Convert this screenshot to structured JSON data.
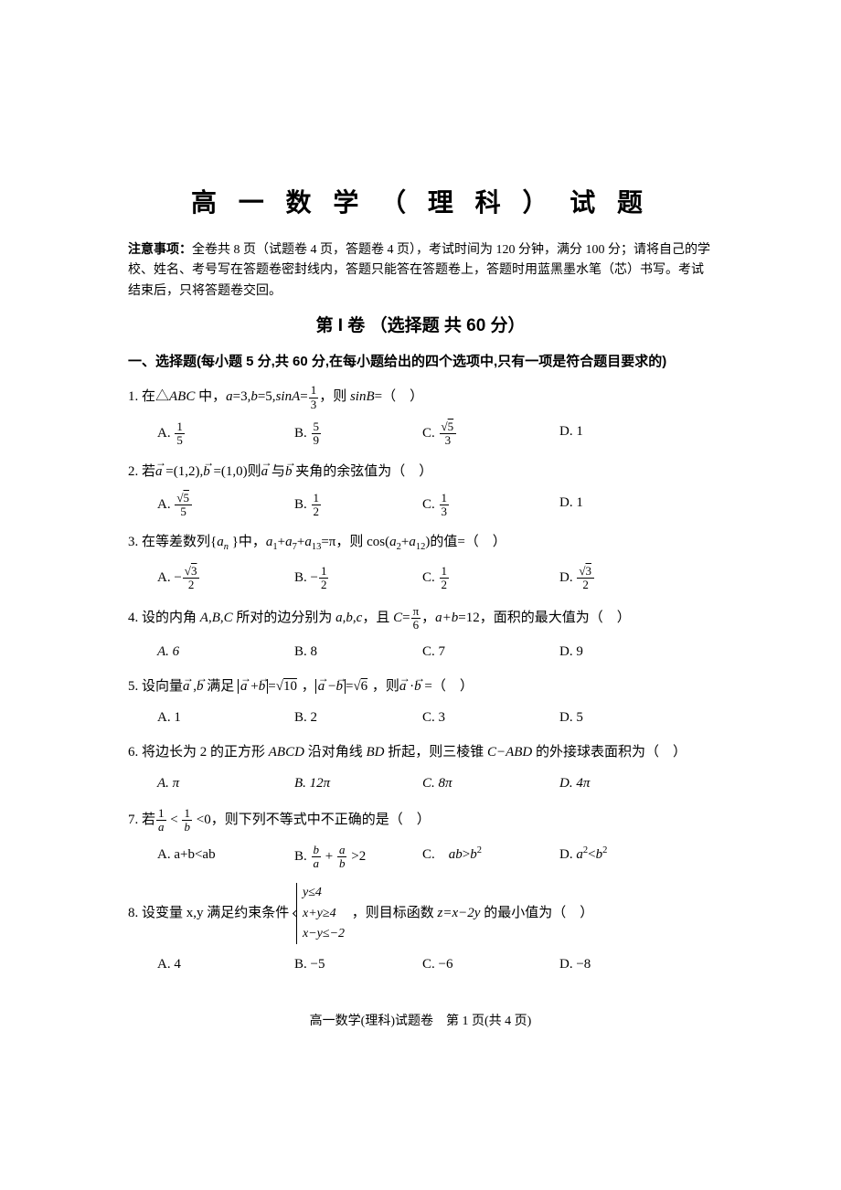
{
  "colors": {
    "text": "#000000",
    "background": "#ffffff"
  },
  "typography": {
    "title_size": 28,
    "body_size": 15,
    "main_font": "SimSun",
    "title_font": "SimHei"
  },
  "title": "高 一 数 学 （ 理 科 ） 试 题",
  "notice_label": "注意事项：",
  "notice": "全卷共 8 页（试题卷 4 页，答题卷 4 页），考试时间为 120 分钟，满分 100 分；请将自己的学校、姓名、考号写在答题卷密封线内，答题只能答在答题卷上，答题时用蓝黑墨水笔（芯）书写。考试结束后，只将答题卷交回。",
  "section_header": "第 I 卷 （选择题 共 60 分）",
  "section_intro": "一、选择题(每小题 5 分,共 60 分,在每小题给出的四个选项中,只有一项是符合题目要求的)",
  "q1": {
    "pre": "1. 在△",
    "mid": " 中，",
    "eq": "=3,",
    "eq2": "=5,",
    "eq3": "=",
    "post": "，则 ",
    "end": "=（　）",
    "optA_pre": "A. ",
    "optB_pre": "B. ",
    "optC_pre": "C. ",
    "optD": "D. 1"
  },
  "q2": {
    "pre": "2. 若",
    "mid1": " =(1,2),",
    "mid2": " =(1,0)则",
    "mid3": " 与",
    "post": " 夹角的余弦值为（　）",
    "optA_pre": "A. ",
    "optB_pre": "B. ",
    "optC_pre": "C. ",
    "optD": "D. 1"
  },
  "q3": {
    "pre": "3. 在等差数列{",
    "mid": " }中，",
    "eq": "=π，则 cos(",
    "post": ")的值=（　）",
    "optA_pre": "A. −",
    "optB_pre": "B. −",
    "optC_pre": "C. ",
    "optD_pre": "D. "
  },
  "q4": {
    "pre": "4. 设的内角 ",
    "mid": " 所对的边分别为 ",
    "mid2": "，且 ",
    "eq": "=",
    "mid3": "，",
    "post": "=12，面积的最大值为（　）",
    "optA": "A. 6",
    "optB": "B. 8",
    "optC": "C. 7",
    "optD": "D. 9"
  },
  "q5": {
    "pre": "5. 设向量",
    "mid": " ,",
    "mid2": " 满足 ",
    "eq1": "=",
    "mid3": " ，",
    "eq2": "=",
    "post": " ，则",
    "end": " =（　）",
    "optA": "A. 1",
    "optB": "B. 2",
    "optC": "C. 3",
    "optD": "D. 5"
  },
  "q6": {
    "stem": "6. 将边长为 2 的正方形 ",
    "mid": " 沿对角线 ",
    "mid2": " 折起，则三棱锥 ",
    "post": " 的外接球表面积为（　）",
    "optA": "A. π",
    "optB": "B. 12π",
    "optC": "C. 8π",
    "optD": "D. 4π"
  },
  "q7": {
    "pre": "7. 若",
    "mid": " < ",
    "post": " <0，则下列不等式中不正确的是（　）",
    "optA": "A. a+b<ab",
    "optB_pre": "B. ",
    "optB_post": " >2",
    "optC_pre": "C.　",
    "optD_pre": "D. "
  },
  "q8": {
    "pre": "8. 设变量 x,y 满足约束条件 ",
    "sys1": "y≤4",
    "sys2": "x+y≥4",
    "sys3": "x−y≤−2",
    "post": " ，则目标函数 ",
    "end": " 的最小值为（　）",
    "optA": "A. 4",
    "optB": "B. −5",
    "optC": "C. −6",
    "optD": "D. −8"
  },
  "footer": "高一数学(理科)试题卷　第 1 页(共 4 页)"
}
